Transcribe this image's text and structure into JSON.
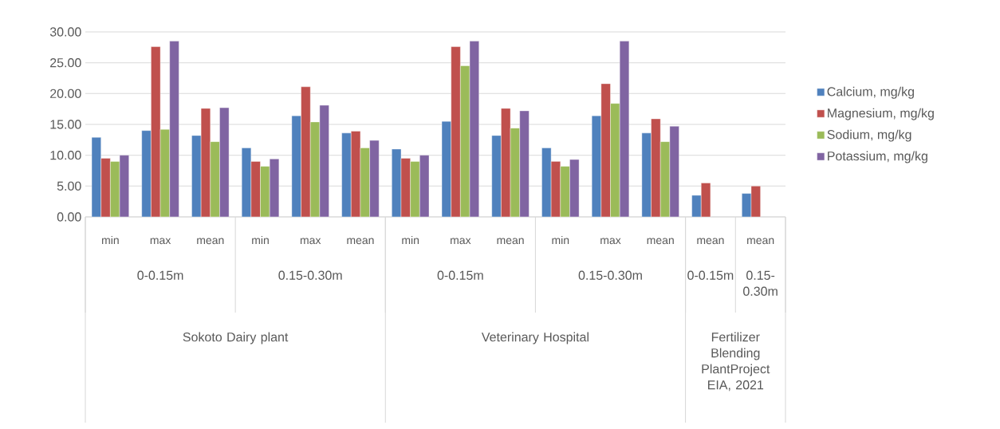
{
  "chart_data": {
    "type": "bar",
    "categories": [
      "min",
      "max",
      "mean",
      "min",
      "max",
      "mean",
      "min",
      "max",
      "mean",
      "min",
      "max",
      "mean",
      "mean",
      "mean"
    ],
    "series": [
      {
        "name": "Calcium, mg/kg",
        "color": "#4f81bd",
        "values": [
          12.9,
          14.0,
          13.2,
          11.2,
          16.4,
          13.6,
          11.0,
          15.5,
          13.2,
          11.2,
          16.4,
          13.6,
          3.5,
          3.8
        ]
      },
      {
        "name": "Magnesium, mg/kg",
        "color": "#c0504d",
        "values": [
          9.5,
          27.6,
          17.6,
          9.0,
          21.1,
          13.9,
          9.5,
          27.6,
          17.6,
          9.0,
          21.6,
          15.9,
          5.5,
          5.0
        ]
      },
      {
        "name": "Sodium, mg/kg",
        "color": "#9bbb59",
        "values": [
          9.0,
          14.2,
          12.2,
          8.2,
          15.4,
          11.2,
          9.0,
          24.5,
          14.4,
          8.2,
          18.4,
          12.2,
          null,
          null
        ]
      },
      {
        "name": "Potassium, mg/kg",
        "color": "#8064a2",
        "values": [
          10.0,
          28.5,
          17.7,
          9.4,
          18.1,
          12.4,
          10.0,
          28.5,
          17.2,
          9.3,
          28.5,
          14.7,
          null,
          null
        ]
      }
    ],
    "ylim": [
      0,
      30
    ],
    "yticks": [
      {
        "value": 0,
        "label": "0.00"
      },
      {
        "value": 5,
        "label": "5.00"
      },
      {
        "value": 10,
        "label": "10.00"
      },
      {
        "value": 15,
        "label": "15.00"
      },
      {
        "value": 20,
        "label": "20.00"
      },
      {
        "value": 25,
        "label": "25.00"
      },
      {
        "value": 30,
        "label": "30.00"
      }
    ],
    "grid": "y",
    "legend": "right",
    "annotations": [
      "0-0.15m",
      "0.15-0.30m",
      "0-0.15m",
      "0.15-0.30m",
      "0-0.15m",
      "0.15-0.30m",
      "Sokoto Dairy plant",
      "Veterinary Hospital",
      "Fertilizer Blending PlantProject EIA, 2021"
    ]
  }
}
